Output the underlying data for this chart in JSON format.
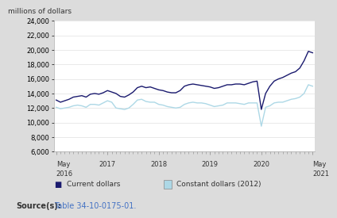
{
  "title_ylabel": "millions of dollars",
  "ylim": [
    6000,
    24000
  ],
  "yticks": [
    6000,
    8000,
    10000,
    12000,
    14000,
    16000,
    18000,
    20000,
    22000,
    24000
  ],
  "bg_color": "#dcdcdc",
  "plot_bg": "#ffffff",
  "current_color": "#1a1a6e",
  "constant_color": "#add8e6",
  "source_bold": "Source(s):",
  "source_table": "Table 34-10-0175-01.",
  "legend_current": "Current dollars",
  "legend_constant": "Constant dollars (2012)",
  "current_dollars": [
    13100,
    12800,
    13000,
    13200,
    13500,
    13600,
    13700,
    13500,
    13900,
    14000,
    13900,
    14100,
    14400,
    14200,
    14000,
    13600,
    13500,
    13800,
    14200,
    14800,
    15000,
    14800,
    14900,
    14700,
    14500,
    14400,
    14200,
    14100,
    14100,
    14400,
    15000,
    15200,
    15300,
    15200,
    15100,
    15000,
    14900,
    14700,
    14800,
    15000,
    15200,
    15200,
    15300,
    15300,
    15200,
    15400,
    15600,
    15700,
    11800,
    14000,
    15000,
    15700,
    16000,
    16200,
    16500,
    16800,
    17000,
    17500,
    18500,
    19800,
    19600
  ],
  "constant_dollars": [
    12100,
    11900,
    12000,
    12100,
    12300,
    12400,
    12300,
    12100,
    12500,
    12500,
    12400,
    12700,
    13000,
    12800,
    12000,
    11900,
    11800,
    12000,
    12500,
    13100,
    13200,
    12900,
    12800,
    12800,
    12500,
    12400,
    12200,
    12100,
    12000,
    12100,
    12500,
    12700,
    12800,
    12700,
    12700,
    12600,
    12400,
    12200,
    12300,
    12400,
    12700,
    12700,
    12700,
    12600,
    12500,
    12700,
    12700,
    12700,
    9500,
    12100,
    12300,
    12700,
    12800,
    12800,
    13000,
    13200,
    13300,
    13500,
    14000,
    15200,
    15000
  ],
  "n_points": 61,
  "x_tick_positions": [
    0,
    12,
    24,
    36,
    48,
    60
  ],
  "x_tick_labels_line1": [
    "May",
    "",
    "",
    "",
    "",
    "May"
  ],
  "x_tick_labels_line2": [
    "2016",
    "2017",
    "2018",
    "2019",
    "2020",
    "2021"
  ]
}
